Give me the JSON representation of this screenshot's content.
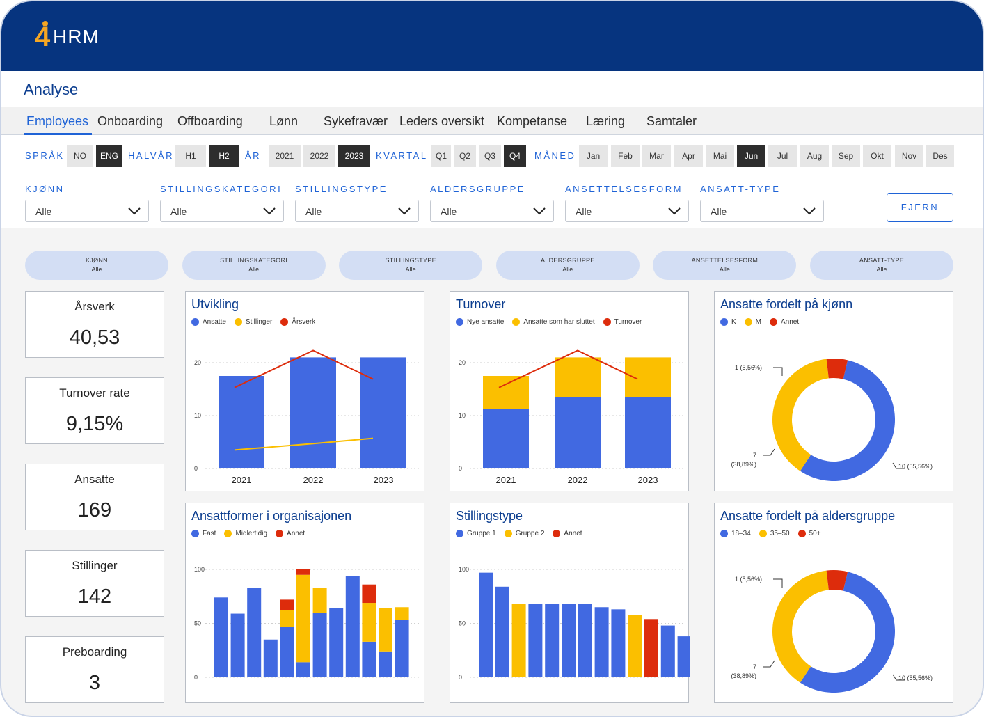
{
  "logo": {
    "number": "4",
    "text": "HRM"
  },
  "page": {
    "title": "Analyse"
  },
  "tabs": [
    "Employees",
    "Onboarding",
    "Offboarding",
    "Lønn",
    "Sykefravær",
    "Leders oversikt",
    "Kompetanse",
    "Læring",
    "Samtaler"
  ],
  "active_tab": "Employees",
  "filter_groups": [
    {
      "label": "SPRÅK",
      "options": [
        "NO",
        "ENG"
      ],
      "selected": "ENG"
    },
    {
      "label": "HALVÅR",
      "options": [
        "H1",
        "H2"
      ],
      "selected": "H2"
    },
    {
      "label": "ÅR",
      "options": [
        "2021",
        "2022",
        "2023"
      ],
      "selected": "2023"
    },
    {
      "label": "KVARTAL",
      "options": [
        "Q1",
        "Q2",
        "Q3",
        "Q4"
      ],
      "selected": "Q4"
    },
    {
      "label": "MÅNED",
      "options": [
        "Jan",
        "Feb",
        "Mar",
        "Apr",
        "Mai",
        "Jun",
        "Jul",
        "Aug",
        "Sep",
        "Okt",
        "Nov",
        "Des"
      ],
      "selected": "Jun"
    }
  ],
  "dropdowns": [
    {
      "label": "KJØNN",
      "value": "Alle"
    },
    {
      "label": "STILLINGSKATEGORI",
      "value": "Alle"
    },
    {
      "label": "STILLINGSTYPE",
      "value": "Alle"
    },
    {
      "label": "ALDERSGRUPPE",
      "value": "Alle"
    },
    {
      "label": "ANSETTELSESFORM",
      "value": "Alle"
    },
    {
      "label": "ANSATT-TYPE",
      "value": "Alle"
    }
  ],
  "clear_button": "FJERN",
  "active_filters": [
    {
      "label": "KJØNN",
      "value": "Alle"
    },
    {
      "label": "STILLINGSKATEGORI",
      "value": "Alle"
    },
    {
      "label": "STILLINGSTYPE",
      "value": "Alle"
    },
    {
      "label": "ALDERSGRUPPE",
      "value": "Alle"
    },
    {
      "label": "ANSETTELSESFORM",
      "value": "Alle"
    },
    {
      "label": "ANSATT-TYPE",
      "value": "Alle"
    }
  ],
  "kpis": [
    {
      "label": "Årsverk",
      "value": "40,53"
    },
    {
      "label": "Turnover rate",
      "value": "9,15%"
    },
    {
      "label": "Ansatte",
      "value": "169"
    },
    {
      "label": "Stillinger",
      "value": "142"
    },
    {
      "label": "Preboarding",
      "value": "3"
    }
  ],
  "colors": {
    "blue": "#4169e1",
    "yellow": "#fbbf00",
    "red": "#dd2c0c",
    "header": "#06347f",
    "accent": "#1f63d6"
  },
  "chart_data": [
    {
      "id": "utvikling",
      "type": "bar",
      "title": "Utvikling",
      "categories": [
        "2021",
        "2022",
        "2023"
      ],
      "yticks": [
        0,
        10,
        20
      ],
      "ylim": [
        0,
        25
      ],
      "series": [
        {
          "name": "Ansatte",
          "kind": "bar",
          "color": "blue",
          "values": [
            17.5,
            21,
            21
          ]
        },
        {
          "name": "Stillinger",
          "kind": "line",
          "color": "yellow",
          "values": [
            3.5,
            4.7,
            5.7
          ]
        },
        {
          "name": "Årsverk",
          "kind": "line",
          "color": "red",
          "values": [
            15.3,
            22.3,
            16.9
          ]
        }
      ]
    },
    {
      "id": "turnover",
      "type": "bar",
      "title": "Turnover",
      "categories": [
        "2021",
        "2022",
        "2023"
      ],
      "yticks": [
        0,
        10,
        20
      ],
      "ylim": [
        0,
        25
      ],
      "series": [
        {
          "name": "Nye ansatte",
          "kind": "stack",
          "color": "blue",
          "values": [
            11.3,
            13.5,
            13.5
          ]
        },
        {
          "name": "Ansatte som har sluttet",
          "kind": "stack",
          "color": "yellow",
          "values": [
            6.2,
            7.5,
            7.5
          ]
        },
        {
          "name": "Turnover",
          "kind": "line",
          "color": "red",
          "values": [
            15.3,
            22.3,
            16.9
          ]
        }
      ]
    },
    {
      "id": "kjonn",
      "type": "pie",
      "title": "Ansatte fordelt på kjønn",
      "slices": [
        {
          "name": "K",
          "value": 10,
          "color": "blue",
          "label": "10 (55,56%)"
        },
        {
          "name": "M",
          "value": 7,
          "color": "yellow",
          "label": "7\n(38,89%)"
        },
        {
          "name": "Annet",
          "value": 1,
          "color": "red",
          "label": "1 (5,56%)"
        }
      ]
    },
    {
      "id": "ansattformer",
      "type": "bar",
      "title": "Ansattformer i organisajonen",
      "yticks": [
        0,
        50,
        100
      ],
      "ylim": [
        0,
        100
      ],
      "series": [
        {
          "name": "Fast",
          "color": "blue",
          "values": [
            74,
            59,
            83,
            35,
            47,
            14,
            60,
            64,
            94,
            33,
            24,
            53
          ]
        },
        {
          "name": "Midlertidig",
          "color": "yellow",
          "values": [
            0,
            0,
            0,
            0,
            15,
            81,
            23,
            0,
            0,
            36,
            40,
            12
          ]
        },
        {
          "name": "Annet",
          "color": "red",
          "values": [
            0,
            0,
            0,
            0,
            10,
            5,
            0,
            0,
            0,
            17,
            0,
            0
          ]
        }
      ]
    },
    {
      "id": "stillingstype",
      "type": "bar",
      "title": "Stillingstype",
      "yticks": [
        0,
        50,
        100
      ],
      "ylim": [
        0,
        100
      ],
      "series": [
        {
          "name": "Gruppe 1",
          "color": "blue"
        },
        {
          "name": "Gruppe 2",
          "color": "yellow"
        },
        {
          "name": "Annet",
          "color": "red"
        }
      ],
      "bars": [
        {
          "value": 97,
          "series": "Gruppe 1"
        },
        {
          "value": 84,
          "series": "Gruppe 1"
        },
        {
          "value": 68,
          "series": "Gruppe 2"
        },
        {
          "value": 68,
          "series": "Gruppe 1"
        },
        {
          "value": 68,
          "series": "Gruppe 1"
        },
        {
          "value": 68,
          "series": "Gruppe 1"
        },
        {
          "value": 68,
          "series": "Gruppe 1"
        },
        {
          "value": 65,
          "series": "Gruppe 1"
        },
        {
          "value": 63,
          "series": "Gruppe 1"
        },
        {
          "value": 58,
          "series": "Gruppe 2"
        },
        {
          "value": 54,
          "series": "Annet"
        },
        {
          "value": 48,
          "series": "Gruppe 1"
        },
        {
          "value": 38,
          "series": "Gruppe 1"
        }
      ]
    },
    {
      "id": "aldersgruppe",
      "type": "pie",
      "title": "Ansatte fordelt på aldersgruppe",
      "slices": [
        {
          "name": "18–34",
          "value": 10,
          "color": "blue",
          "label": "10 (55,56%)"
        },
        {
          "name": "35–50",
          "value": 7,
          "color": "yellow",
          "label": "7\n(38,89%)"
        },
        {
          "name": "50+",
          "value": 1,
          "color": "red",
          "label": "1 (5,56%)"
        }
      ]
    }
  ]
}
